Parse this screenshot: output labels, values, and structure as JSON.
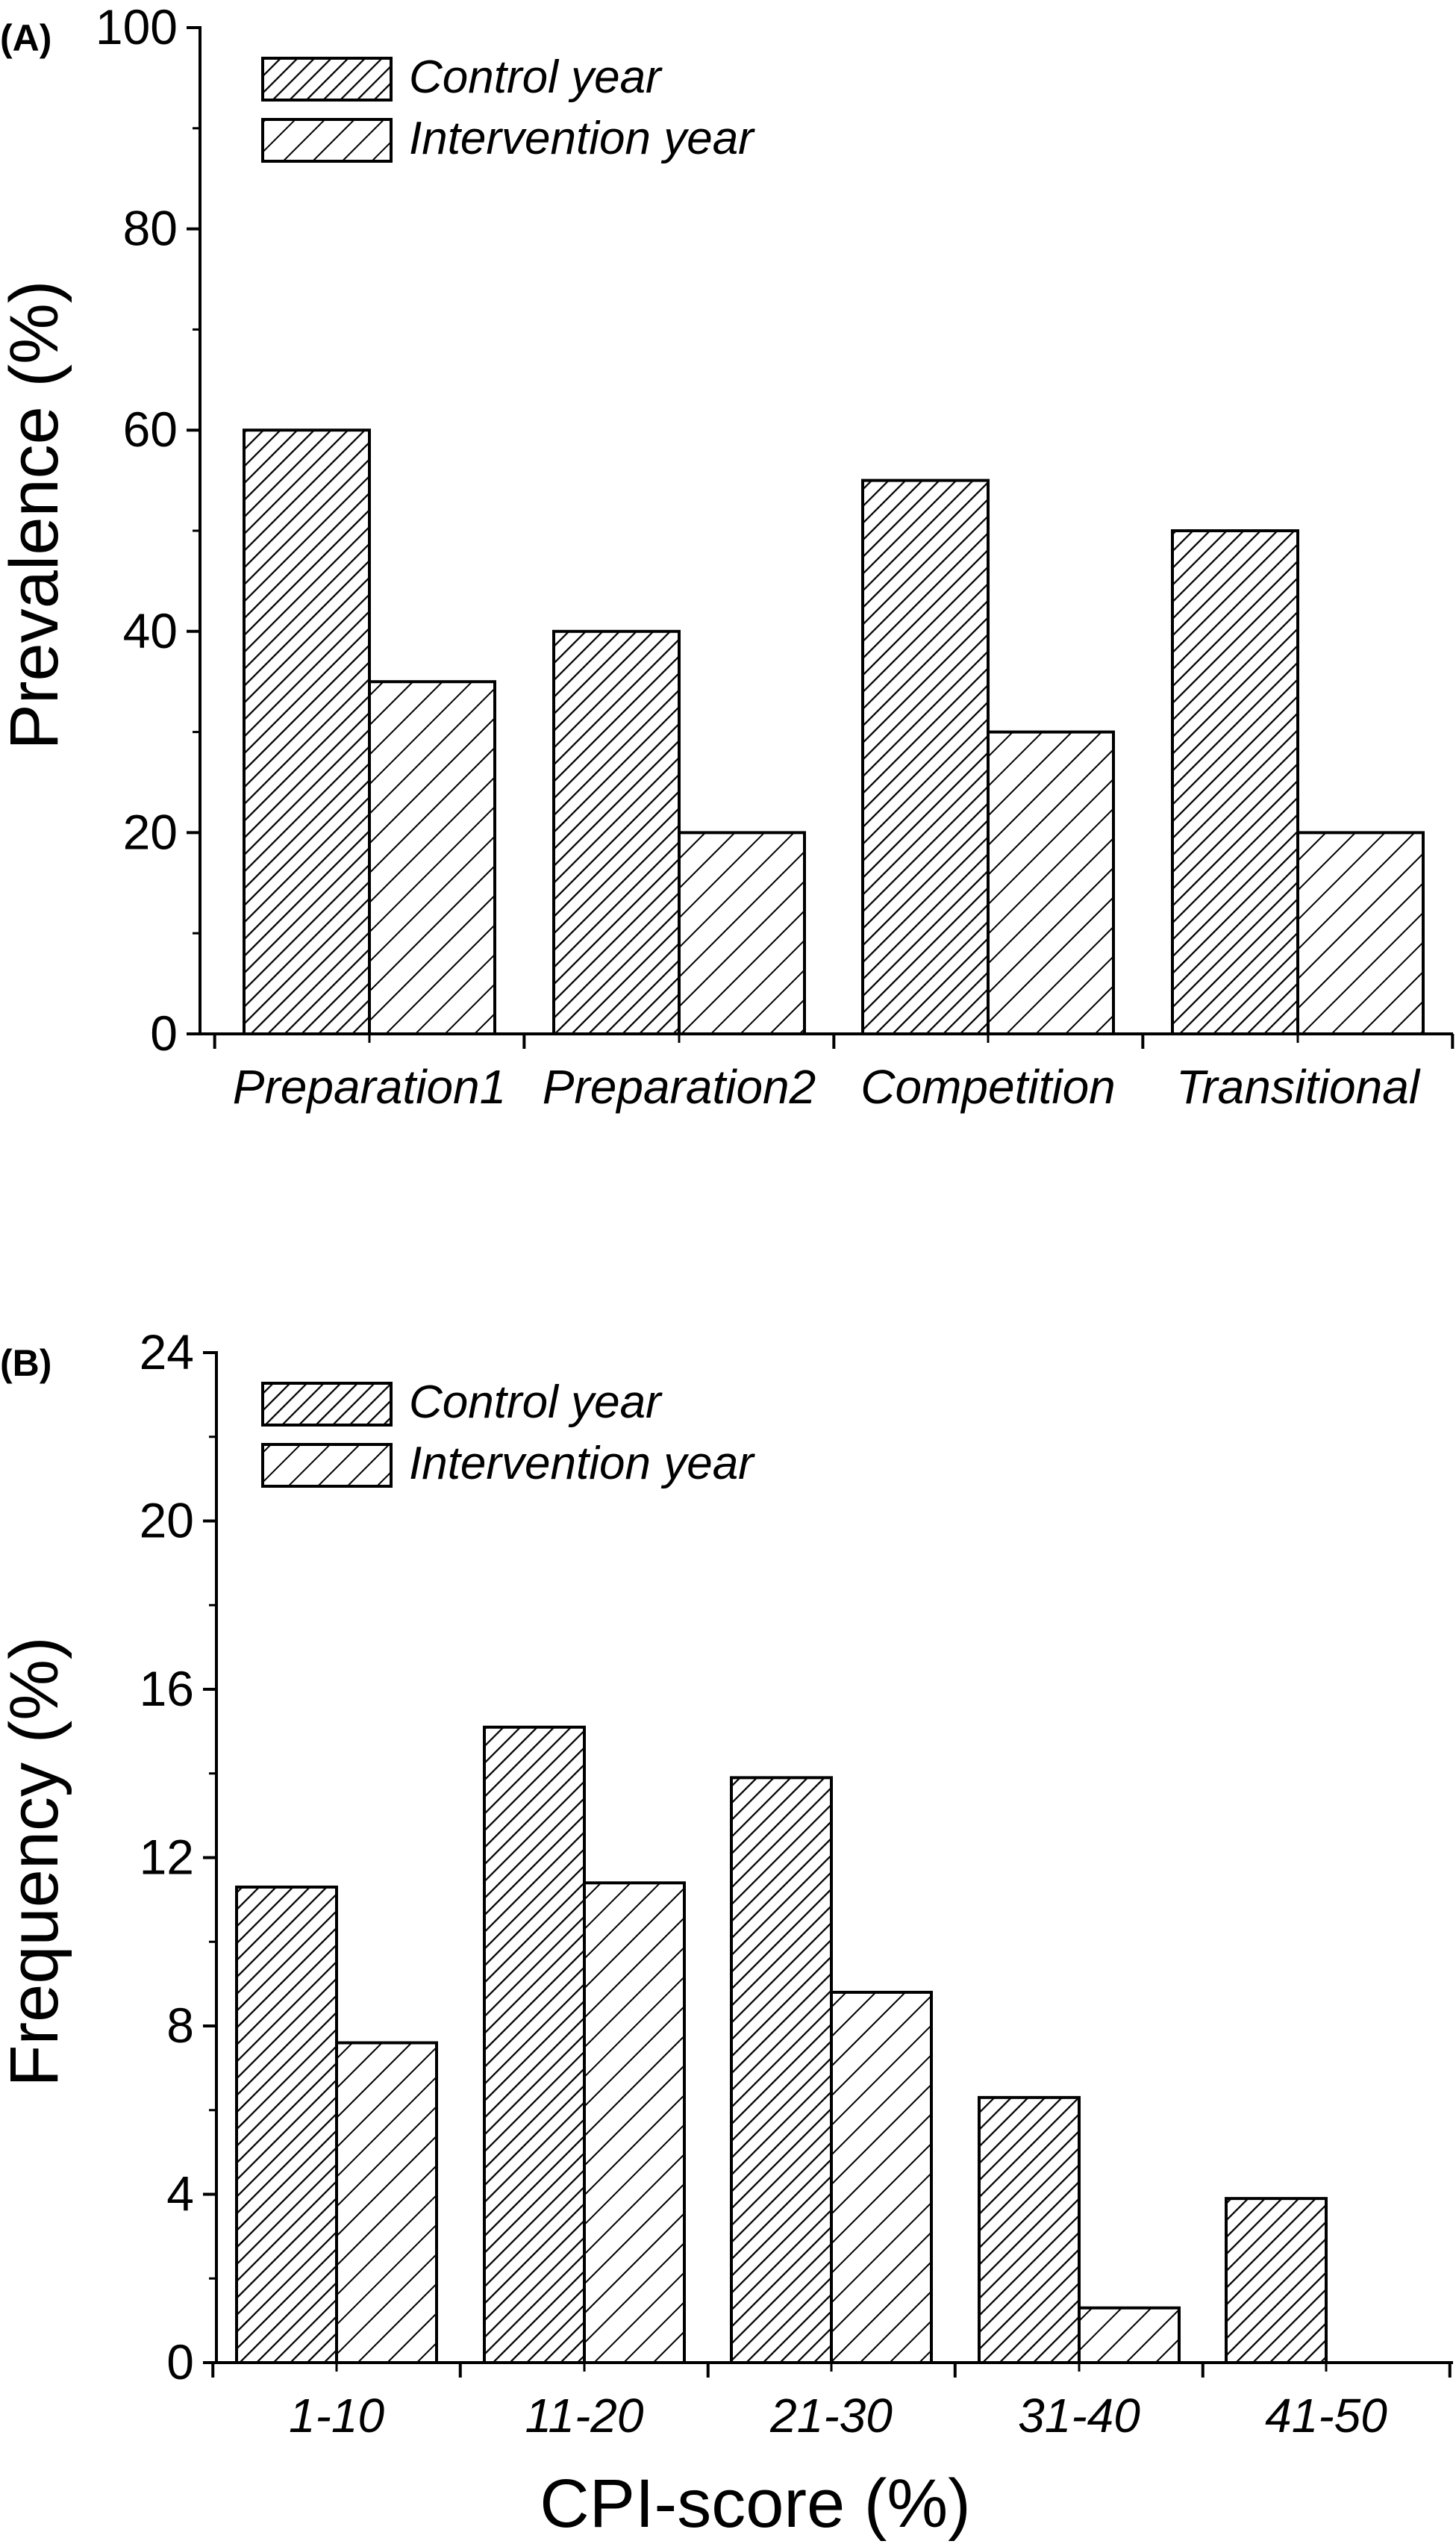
{
  "chart_data": [
    {
      "panel_label": "(A)",
      "type": "bar",
      "title": "",
      "xlabel": "",
      "ylabel": "Prevalence (%)",
      "ylim": [
        0,
        100
      ],
      "yticks": [
        "0",
        "20",
        "40",
        "60",
        "80",
        "100"
      ],
      "ytick_values": [
        0,
        20,
        40,
        60,
        80,
        100
      ],
      "minor_tick_step": 10,
      "categories": [
        "Preparation1",
        "Preparation2",
        "Competition",
        "Transitional"
      ],
      "series": [
        {
          "name": "Control year",
          "values": [
            60,
            40,
            55,
            50
          ],
          "pattern": "dense-hatch"
        },
        {
          "name": "Intervention year",
          "values": [
            35,
            20,
            30,
            20
          ],
          "pattern": "sparse-hatch"
        }
      ],
      "legend": "top-left",
      "grid": false,
      "category_label_style": "italic"
    },
    {
      "panel_label": "(B)",
      "type": "bar",
      "title": "",
      "xlabel": "CPI-score (%)",
      "ylabel": "Frequency (%)",
      "ylim": [
        0,
        24
      ],
      "yticks": [
        "0",
        "4",
        "8",
        "12",
        "16",
        "20",
        "24"
      ],
      "ytick_values": [
        0,
        4,
        8,
        12,
        16,
        20,
        24
      ],
      "minor_tick_step": 2,
      "categories": [
        "1-10",
        "11-20",
        "21-30",
        "31-40",
        "41-50"
      ],
      "series": [
        {
          "name": "Control year",
          "values": [
            11.3,
            15.1,
            13.9,
            6.3,
            3.9
          ],
          "pattern": "dense-hatch"
        },
        {
          "name": "Intervention year",
          "values": [
            7.6,
            11.4,
            8.8,
            1.3,
            0
          ],
          "pattern": "sparse-hatch"
        }
      ],
      "legend": "top-left",
      "grid": false,
      "category_label_style": "italic"
    }
  ],
  "colors": {
    "stroke": "#000000",
    "background": "#ffffff"
  }
}
